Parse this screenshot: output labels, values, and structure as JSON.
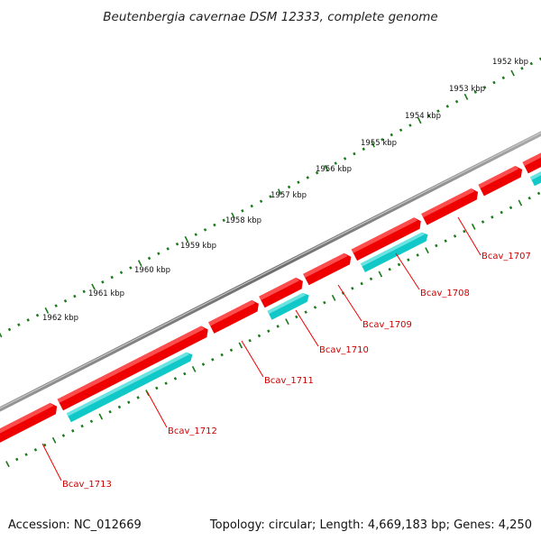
{
  "title": "Beutenbergia cavernae DSM 12333, complete genome",
  "footer": {
    "accession": "Accession: NC_012669",
    "topology": "Topology: circular; Length: 4,669,183 bp; Genes: 4,250"
  },
  "ruler_labels": [
    "1952 kbp",
    "1953 kbp",
    "1954 kbp",
    "1955 kbp",
    "1956 kbp",
    "1957 kbp",
    "1958 kbp",
    "1959 kbp",
    "1960 kbp",
    "1961 kbp",
    "1962 kbp"
  ],
  "gene_labels": [
    "Bcav_1707",
    "Bcav_1708",
    "Bcav_1709",
    "Bcav_1710",
    "Bcav_1711",
    "Bcav_1712",
    "Bcav_1713"
  ],
  "colors": {
    "backbone": "#7a7a7a",
    "cds": "#ee0000",
    "cds_top": "#ff5a5a",
    "gene": "#10c8c8",
    "gene_top": "#7ae8e8",
    "ruler": "#1a7a1a",
    "label": "#cc0000"
  }
}
